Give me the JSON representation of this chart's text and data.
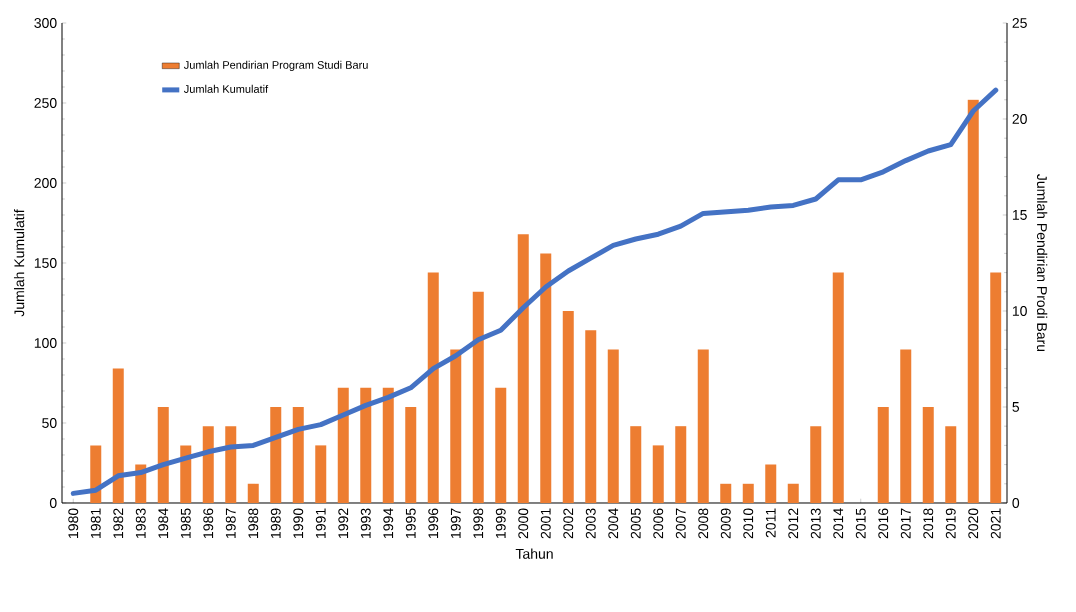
{
  "chart_data": {
    "type": "bar",
    "xlabel": "Tahun",
    "ylabel": "Jumlah Kumulatif",
    "y2label": "Jumlah Pendirian Prodi Baru",
    "categories": [
      "1980",
      "1981",
      "1982",
      "1983",
      "1984",
      "1985",
      "1986",
      "1987",
      "1988",
      "1989",
      "1990",
      "1991",
      "1992",
      "1993",
      "1994",
      "1995",
      "1996",
      "1997",
      "1998",
      "1999",
      "2000",
      "2001",
      "2002",
      "2003",
      "2004",
      "2005",
      "2006",
      "2007",
      "2008",
      "2009",
      "2010",
      "2011",
      "2012",
      "2013",
      "2014",
      "2015",
      "2016",
      "2017",
      "2018",
      "2019",
      "2020",
      "2021"
    ],
    "series": [
      {
        "name": "Jumlah Pendirian Program Studi Baru",
        "axis": "y2",
        "color": "#ed7d31",
        "values": [
          null,
          3,
          7,
          2,
          5,
          3,
          4,
          4,
          1,
          5,
          5,
          3,
          6,
          6,
          6,
          5,
          12,
          8,
          11,
          6,
          14,
          13,
          10,
          9,
          8,
          4,
          3,
          4,
          8,
          1,
          1,
          2,
          1,
          4,
          12,
          0,
          5,
          8,
          5,
          4,
          21,
          12
        ]
      },
      {
        "name": "Jumlah Kumulatif",
        "type": "line",
        "axis": "y",
        "color": "#4472c4",
        "values": [
          6,
          8,
          17,
          19,
          24,
          28,
          32,
          35,
          36,
          41,
          46,
          49,
          55,
          61,
          66,
          72,
          84,
          92,
          102,
          108,
          122,
          135,
          145,
          153,
          161,
          165,
          168,
          173,
          181,
          182,
          183,
          185,
          186,
          190,
          202,
          202,
          207,
          214,
          220,
          224,
          245,
          258
        ]
      }
    ],
    "ylim": [
      0,
      300
    ],
    "yticks": [
      0,
      50,
      100,
      150,
      200,
      250,
      300
    ],
    "y2lim": [
      0,
      25
    ],
    "y2ticks": [
      0,
      5,
      10,
      15,
      20,
      25
    ],
    "legend": "top left"
  }
}
